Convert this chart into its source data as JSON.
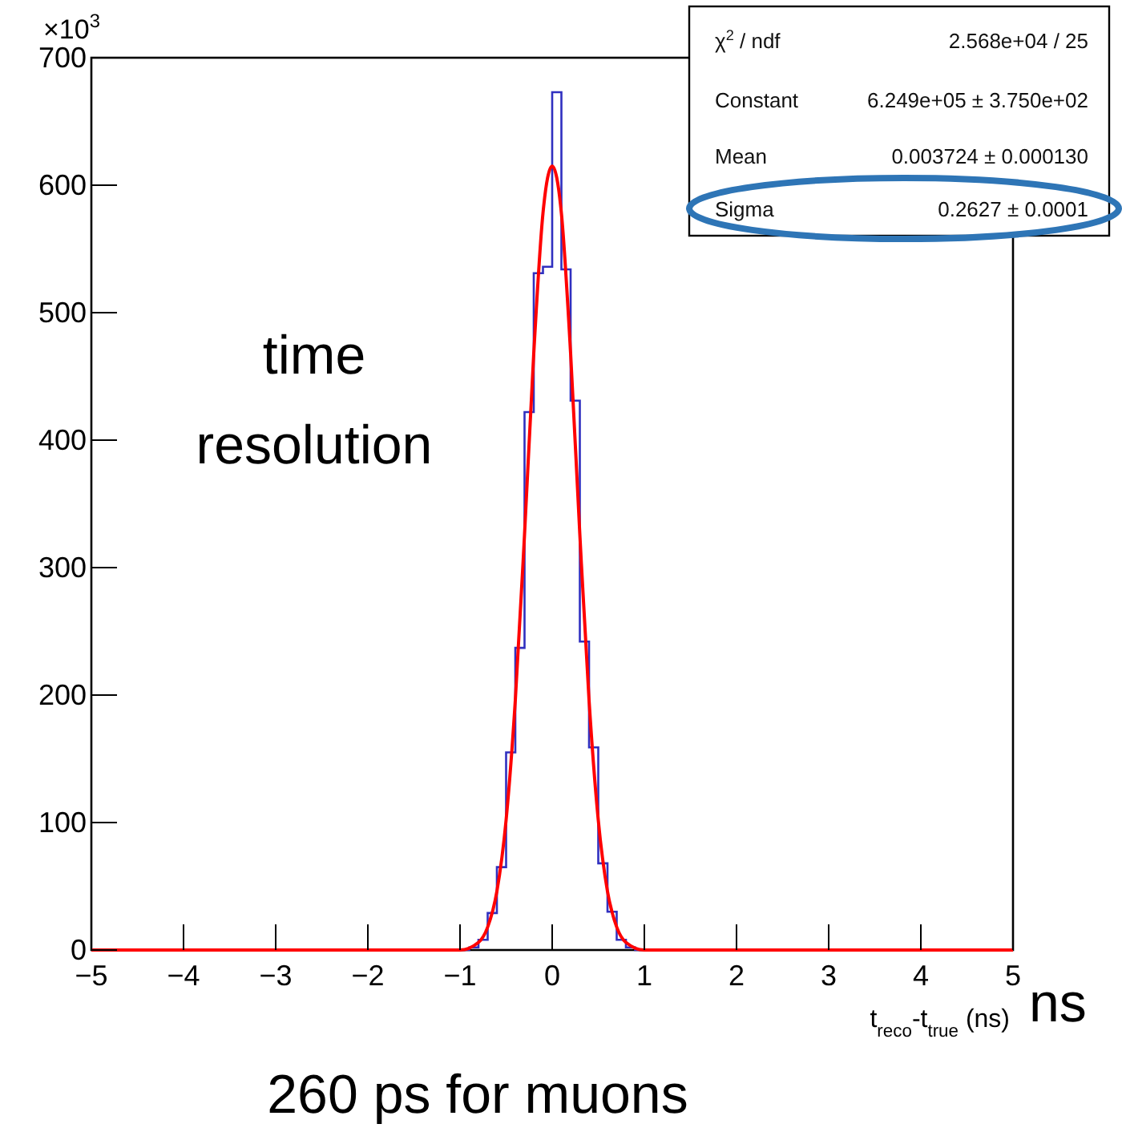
{
  "chart_data": {
    "type": "histogram",
    "xlabel": "t$_{reco}$-t$_{true}$ (ns)",
    "bins": [
      -5,
      -4.9,
      -4.8,
      -4.7,
      -4.6,
      -4.5,
      -4.4,
      -4.3,
      -4.2,
      -4.1,
      -4,
      -3.9,
      -3.8,
      -3.7,
      -3.6,
      -3.5,
      -3.4,
      -3.3,
      -3.2,
      -3.1,
      -3,
      -2.9,
      -2.8,
      -2.7,
      -2.6,
      -2.5,
      -2.4,
      -2.3,
      -2.2,
      -2.1,
      -2,
      -1.9,
      -1.8,
      -1.7,
      -1.6,
      -1.5,
      -1.4,
      -1.3,
      -1.2,
      -1.1,
      -1,
      -0.9,
      -0.8,
      -0.7,
      -0.6,
      -0.5,
      -0.4,
      -0.3,
      -0.2,
      -0.1,
      0,
      0.1,
      0.2,
      0.3,
      0.4,
      0.5,
      0.6,
      0.7,
      0.8,
      0.9,
      1,
      1.1,
      1.2,
      1.3,
      1.4,
      1.5,
      1.6,
      1.7,
      1.8,
      1.9,
      2,
      2.1,
      2.2,
      2.3,
      2.4,
      2.5,
      2.6,
      2.7,
      2.8,
      2.9,
      3,
      3.1,
      3.2,
      3.3,
      3.4,
      3.5,
      3.6,
      3.7,
      3.8,
      3.9,
      4,
      4.1,
      4.2,
      4.3,
      4.4,
      4.5,
      4.6,
      4.7,
      4.8,
      4.9,
      5
    ],
    "series": [
      {
        "type": "histogram",
        "color": "#3030c0",
        "values": [
          0,
          0,
          0,
          0,
          0,
          0,
          0,
          0,
          0,
          0,
          0,
          0,
          0,
          0,
          0,
          0,
          0,
          0,
          0,
          0,
          0,
          0,
          0,
          0,
          0,
          0,
          0,
          0,
          0,
          0,
          0,
          0,
          0,
          0,
          0,
          0,
          0,
          0,
          0,
          0,
          0,
          2,
          8,
          29,
          65,
          155,
          237,
          422,
          531,
          536,
          673,
          534,
          431,
          242,
          159,
          68,
          30,
          8,
          2,
          0,
          0,
          0,
          0,
          0,
          0,
          0,
          0,
          0,
          0,
          0,
          0,
          0,
          0,
          0,
          0,
          0,
          0,
          0,
          0,
          0,
          0,
          0,
          0,
          0,
          0,
          0,
          0,
          0,
          0,
          0,
          0,
          0,
          0,
          0,
          0,
          0,
          0,
          0,
          0,
          0
        ]
      },
      {
        "type": "line",
        "color": "#ff0000",
        "x": [
          -5,
          -1.2,
          -1,
          -0.8,
          -0.7,
          -0.6,
          -0.5,
          -0.4,
          -0.3,
          -0.2,
          -0.1,
          0,
          0.1,
          0.2,
          0.3,
          0.4,
          0.5,
          0.6,
          0.7,
          0.8,
          1,
          1.2,
          5
        ],
        "values": [
          0,
          0,
          0,
          6,
          18,
          46,
          102,
          196,
          326,
          468,
          578,
          615,
          578,
          468,
          326,
          196,
          102,
          46,
          18,
          6,
          0,
          0,
          0
        ]
      }
    ],
    "xlim": [
      -5,
      5
    ],
    "xticks": [
      -5,
      -4,
      -3,
      -2,
      -1,
      0,
      1,
      2,
      3,
      4,
      5
    ],
    "ylim": [
      0,
      700
    ],
    "yticks": [
      0,
      100,
      200,
      300,
      400,
      500,
      600,
      700
    ],
    "grid": false,
    "annotations": [
      "×10$^{3}$",
      "χ$^{2}$ / ndf",
      "2.568e+04 / 25",
      "Constant",
      "6.249e+05 ± 3.750e+02",
      "Mean",
      "0.003724 ± 0.000130",
      "Sigma",
      "0.2627 ± 0.0001",
      "time resolution",
      "ns",
      "260 ps for muons"
    ]
  }
}
